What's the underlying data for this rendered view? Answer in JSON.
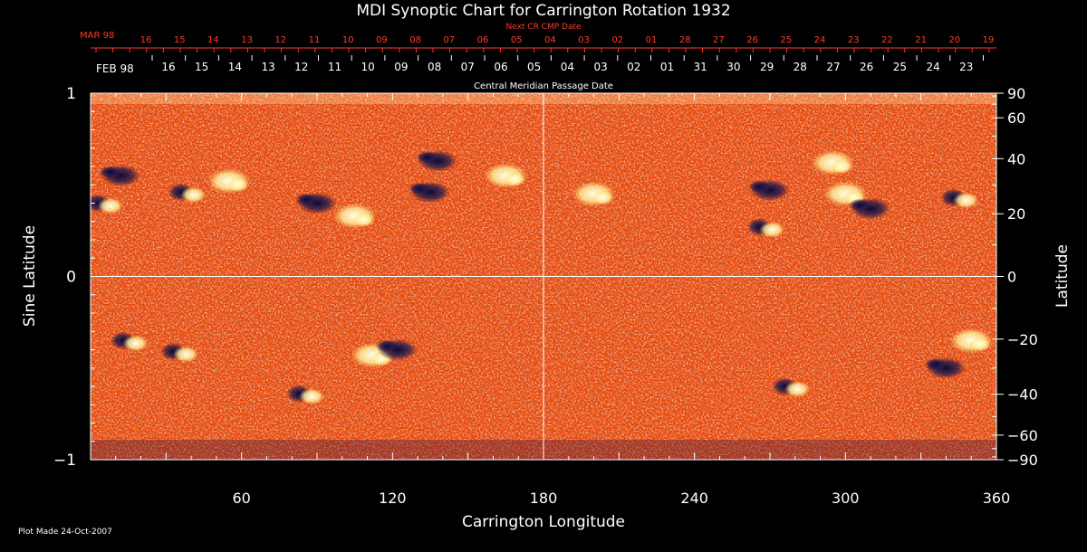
{
  "chart_data": {
    "type": "heatmap",
    "title": "MDI Synoptic Chart for Carrington Rotation 1932",
    "xlabel": "Carrington Longitude",
    "ylabel_left": "Sine Latitude",
    "ylabel_right": "Latitude",
    "xlim": [
      0,
      360
    ],
    "ylim": [
      -1,
      1
    ],
    "x_ticks": [
      60,
      120,
      180,
      240,
      300,
      360
    ],
    "y_ticks_left": [
      {
        "value": 1,
        "label": "1"
      },
      {
        "value": 0,
        "label": "0"
      },
      {
        "value": -1,
        "label": "−1"
      }
    ],
    "y_ticks_right": [
      {
        "deg": 90,
        "label": "90"
      },
      {
        "deg": 60,
        "label": "60"
      },
      {
        "deg": 40,
        "label": "40"
      },
      {
        "deg": 20,
        "label": "20"
      },
      {
        "deg": 0,
        "label": "0"
      },
      {
        "deg": -20,
        "label": "−20"
      },
      {
        "deg": -40,
        "label": "−40"
      },
      {
        "deg": -60,
        "label": "−60"
      },
      {
        "deg": -90,
        "label": "−90"
      }
    ],
    "grid_lines": {
      "longitude": [
        180
      ],
      "sine_latitude": [
        0
      ]
    },
    "next_cr_axis": {
      "title": "Next CR CMP Date",
      "month_label": "MAR 98",
      "labels": [
        "16",
        "15",
        "14",
        "13",
        "12",
        "11",
        "10",
        "09",
        "08",
        "07",
        "06",
        "05",
        "04",
        "03",
        "02",
        "01",
        "28",
        "27",
        "26",
        "25",
        "24",
        "23",
        "22",
        "21",
        "20",
        "19"
      ]
    },
    "cmp_axis": {
      "title": "Central Meridian Passage Date",
      "month_label": "FEB 98",
      "labels": [
        "16",
        "15",
        "14",
        "13",
        "12",
        "11",
        "10",
        "09",
        "08",
        "07",
        "06",
        "05",
        "04",
        "03",
        "02",
        "01",
        "31",
        "30",
        "29",
        "28",
        "27",
        "26",
        "25",
        "24",
        "23"
      ]
    },
    "colors": {
      "background_field": "#e84a06",
      "positive_polarity": "#ffffe6",
      "negative_polarity": "#0e0c3c",
      "axis": "#ffffff",
      "secondary_axis": "#ff3a2a"
    },
    "active_regions": [
      {
        "lon": 5,
        "sinlat": 0.4,
        "polarity": "mixed"
      },
      {
        "lon": 12,
        "sinlat": 0.55,
        "polarity": "negative"
      },
      {
        "lon": 38,
        "sinlat": 0.46,
        "polarity": "mixed"
      },
      {
        "lon": 55,
        "sinlat": 0.52,
        "polarity": "positive"
      },
      {
        "lon": 90,
        "sinlat": 0.4,
        "polarity": "negative"
      },
      {
        "lon": 105,
        "sinlat": 0.33,
        "polarity": "positive"
      },
      {
        "lon": 135,
        "sinlat": 0.46,
        "polarity": "negative"
      },
      {
        "lon": 138,
        "sinlat": 0.63,
        "polarity": "negative"
      },
      {
        "lon": 165,
        "sinlat": 0.55,
        "polarity": "positive"
      },
      {
        "lon": 200,
        "sinlat": 0.45,
        "polarity": "positive"
      },
      {
        "lon": 270,
        "sinlat": 0.47,
        "polarity": "negative"
      },
      {
        "lon": 268,
        "sinlat": 0.27,
        "polarity": "mixed"
      },
      {
        "lon": 295,
        "sinlat": 0.62,
        "polarity": "positive"
      },
      {
        "lon": 300,
        "sinlat": 0.45,
        "polarity": "positive"
      },
      {
        "lon": 310,
        "sinlat": 0.37,
        "polarity": "negative"
      },
      {
        "lon": 345,
        "sinlat": 0.43,
        "polarity": "mixed"
      },
      {
        "lon": 15,
        "sinlat": -0.35,
        "polarity": "mixed"
      },
      {
        "lon": 35,
        "sinlat": -0.41,
        "polarity": "mixed"
      },
      {
        "lon": 85,
        "sinlat": -0.64,
        "polarity": "mixed"
      },
      {
        "lon": 112,
        "sinlat": -0.43,
        "polarity": "positive"
      },
      {
        "lon": 122,
        "sinlat": -0.4,
        "polarity": "negative"
      },
      {
        "lon": 278,
        "sinlat": -0.6,
        "polarity": "mixed"
      },
      {
        "lon": 340,
        "sinlat": -0.5,
        "polarity": "negative"
      },
      {
        "lon": 350,
        "sinlat": -0.35,
        "polarity": "positive"
      }
    ],
    "footnote": "Plot Made 24-Oct-2007"
  }
}
